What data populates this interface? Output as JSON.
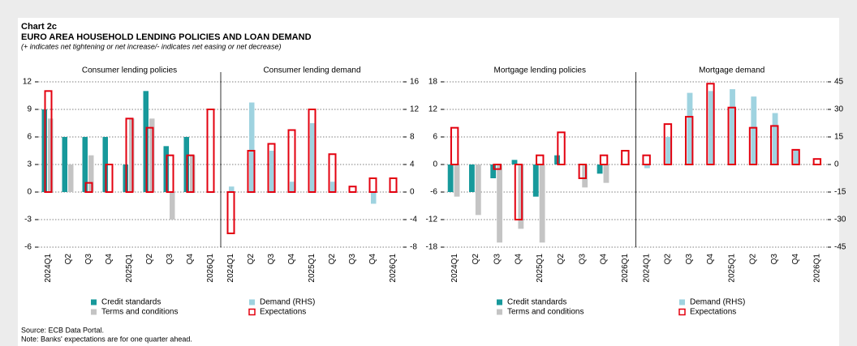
{
  "chart_label": "Chart 2c",
  "title": "EURO AREA HOUSEHOLD LENDING POLICIES AND LOAN DEMAND",
  "subtitle": "(+ indicates net tightening or net increase/- indicates net easing or net decrease)",
  "source": "Source: ECB Data Portal.",
  "note": "Note: Banks' expectations are for one quarter ahead.",
  "chart_data": [
    {
      "type": "bar",
      "panel_titles": [
        "Consumer lending policies",
        "Consumer lending demand"
      ],
      "categories": [
        "2024Q1",
        "Q2",
        "Q3",
        "Q4",
        "2025Q1",
        "Q2",
        "Q3",
        "Q4",
        "2026Q1",
        "2024Q1",
        "Q2",
        "Q3",
        "Q4",
        "2025Q1",
        "Q2",
        "Q3",
        "Q4",
        "2026Q1"
      ],
      "ylim": [
        -6,
        12
      ],
      "yticks": [
        -6,
        -3,
        0,
        3,
        6,
        9,
        12
      ],
      "y2lim": [
        -8,
        16
      ],
      "y2ticks": [
        -8,
        -4,
        0,
        4,
        8,
        12,
        16
      ],
      "grid": true,
      "series": [
        {
          "name": "Credit standards",
          "color": "#17999b",
          "axis": "y",
          "values": [
            9,
            6,
            6,
            6,
            3,
            11,
            5,
            6,
            null,
            null,
            null,
            null,
            null,
            null,
            null,
            null,
            null,
            null
          ]
        },
        {
          "name": "Terms and conditions",
          "color": "#c4c4c4",
          "axis": "y",
          "values": [
            8,
            3,
            4,
            0,
            8,
            8,
            -3,
            4,
            null,
            null,
            null,
            null,
            null,
            null,
            null,
            null,
            null,
            null
          ]
        },
        {
          "name": "Demand (RHS)",
          "color": "#9fd3e0",
          "axis": "y2",
          "values": [
            null,
            null,
            null,
            null,
            null,
            null,
            null,
            null,
            null,
            0.8,
            13,
            6,
            1.5,
            10,
            1.5,
            0,
            -1.7,
            null
          ]
        },
        {
          "name": "Expectations",
          "color": "#e3000f",
          "outline": true,
          "axis": "y",
          "values": [
            11,
            null,
            1,
            3,
            8,
            7,
            4,
            4,
            9,
            null,
            null,
            null,
            null,
            null,
            null,
            null,
            null,
            null
          ]
        },
        {
          "name": "Expectations",
          "color": "#e3000f",
          "outline": true,
          "axis": "y2",
          "values": [
            null,
            null,
            null,
            null,
            null,
            null,
            null,
            null,
            null,
            -6,
            6,
            7,
            9,
            12,
            5.5,
            0.8,
            2,
            2
          ]
        }
      ]
    },
    {
      "type": "bar",
      "panel_titles": [
        "Mortgage lending policies",
        "Mortgage demand"
      ],
      "categories": [
        "2024Q1",
        "Q2",
        "Q3",
        "Q4",
        "2025Q1",
        "Q2",
        "Q3",
        "Q4",
        "2026Q1",
        "2024Q1",
        "Q2",
        "Q3",
        "Q4",
        "2025Q1",
        "Q2",
        "Q3",
        "Q4",
        "2026Q1"
      ],
      "ylim": [
        -18,
        18
      ],
      "yticks": [
        -18,
        -12,
        -6,
        0,
        6,
        12,
        18
      ],
      "y2lim": [
        -45,
        45
      ],
      "y2ticks": [
        -45,
        -30,
        -15,
        0,
        15,
        30,
        45
      ],
      "grid": true,
      "series": [
        {
          "name": "Credit standards",
          "color": "#17999b",
          "axis": "y",
          "values": [
            -6,
            -6,
            -3,
            1,
            -7,
            2,
            0,
            -2,
            null,
            null,
            null,
            null,
            null,
            null,
            null,
            null,
            null,
            null
          ]
        },
        {
          "name": "Terms and conditions",
          "color": "#c4c4c4",
          "axis": "y",
          "values": [
            -7,
            -11,
            -17,
            -14,
            -17,
            0,
            -5,
            -4,
            null,
            null,
            null,
            null,
            null,
            null,
            null,
            null,
            null,
            null
          ]
        },
        {
          "name": "Demand (RHS)",
          "color": "#9fd3e0",
          "axis": "y2",
          "values": [
            null,
            null,
            null,
            null,
            null,
            null,
            null,
            null,
            null,
            -2,
            15,
            39,
            40,
            41,
            37,
            28,
            8,
            null
          ]
        },
        {
          "name": "Expectations",
          "color": "#e3000f",
          "outline": true,
          "axis": "y",
          "values": [
            8,
            null,
            -1,
            -12,
            2,
            7,
            -3,
            2,
            3,
            null,
            null,
            null,
            null,
            null,
            null,
            null,
            null,
            null
          ]
        },
        {
          "name": "Expectations",
          "color": "#e3000f",
          "outline": true,
          "axis": "y2",
          "values": [
            null,
            null,
            null,
            null,
            null,
            null,
            null,
            null,
            null,
            5,
            22,
            26,
            44,
            31,
            20,
            21,
            8,
            3
          ]
        }
      ]
    }
  ]
}
